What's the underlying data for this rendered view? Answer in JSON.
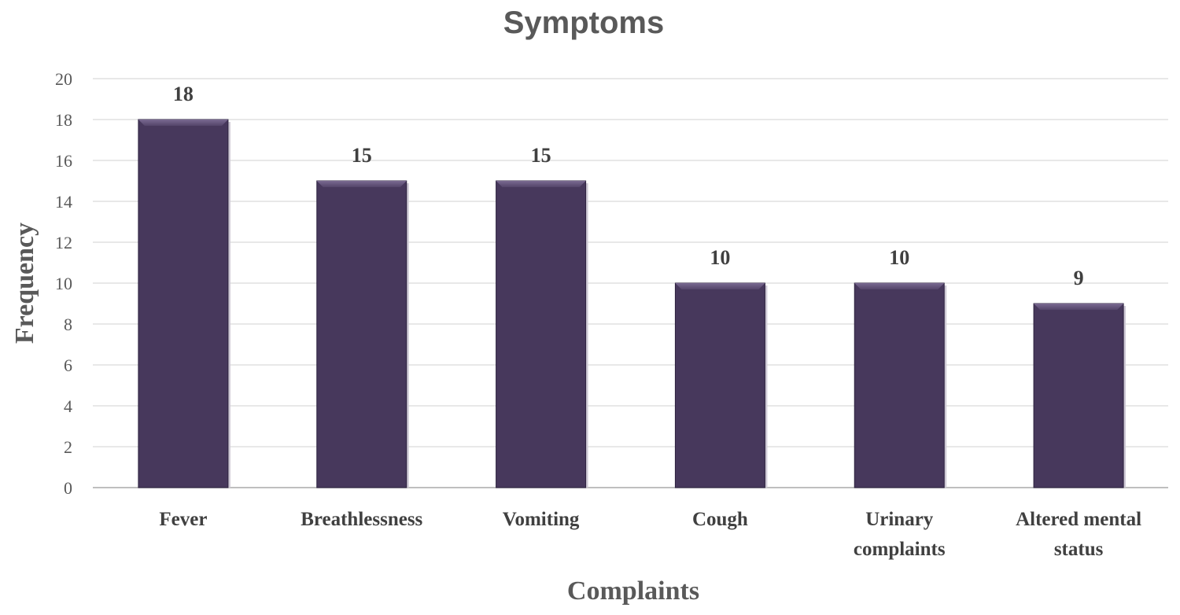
{
  "chart_data": {
    "type": "bar",
    "title": "Symptoms",
    "xlabel": "Complaints",
    "ylabel": "Frequency",
    "categories": [
      [
        "Fever"
      ],
      [
        "Breathlessness"
      ],
      [
        "Vomiting"
      ],
      [
        "Cough"
      ],
      [
        "Urinary",
        "complaints"
      ],
      [
        "Altered mental",
        "status"
      ]
    ],
    "values": [
      18,
      15,
      15,
      10,
      10,
      9
    ],
    "ylim": [
      0,
      20
    ],
    "yticks": [
      0,
      2,
      4,
      6,
      8,
      10,
      12,
      14,
      16,
      18,
      20
    ],
    "grid": true,
    "bar_color": "#47385c"
  }
}
